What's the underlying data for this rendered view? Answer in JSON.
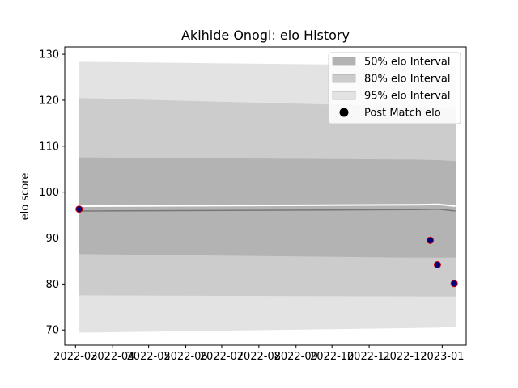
{
  "chart_data": {
    "type": "area",
    "title": "Akihide Onogi: elo History",
    "xlabel": "",
    "ylabel": "elo score",
    "x_ticks": [
      "2022-03",
      "2022-04",
      "2022-05",
      "2022-06",
      "2022-07",
      "2022-08",
      "2022-09",
      "2022-10",
      "2022-11",
      "2022-12",
      "2023-01"
    ],
    "x_tick_dates": [
      "2022-03-01",
      "2022-04-01",
      "2022-05-01",
      "2022-06-01",
      "2022-07-01",
      "2022-08-01",
      "2022-09-01",
      "2022-10-01",
      "2022-11-01",
      "2022-12-01",
      "2023-01-01"
    ],
    "y_ticks": [
      70,
      80,
      90,
      100,
      110,
      120,
      130
    ],
    "ylim": [
      66.7,
      131.6
    ],
    "xlim": [
      "2022-02-20",
      "2023-01-21"
    ],
    "grid": false,
    "legend_position": "top-right",
    "legend": [
      {
        "label": "50% elo Interval",
        "color": "#b3b3b3"
      },
      {
        "label": "80% elo Interval",
        "color": "#cccccc"
      },
      {
        "label": "95% elo Interval",
        "color": "#e3e3e3"
      },
      {
        "label": "Post Match elo",
        "color": "#000000"
      }
    ],
    "bands": {
      "x": [
        "2022-03-04",
        "2022-12-11",
        "2022-12-29",
        "2023-01-12"
      ],
      "mean": [
        95.9,
        96.2,
        96.3,
        95.9
      ],
      "p50_low": [
        86.6,
        85.8,
        85.8,
        85.8
      ],
      "p50_high": [
        107.5,
        107.0,
        106.9,
        106.7
      ],
      "p80_low": [
        77.6,
        77.4,
        77.4,
        77.4
      ],
      "p80_high": [
        120.4,
        118.5,
        118.3,
        118.0
      ],
      "p95_low": [
        69.5,
        70.5,
        70.6,
        70.8
      ],
      "p95_high": [
        128.3,
        127.5,
        127.4,
        127.3
      ]
    },
    "points": [
      {
        "x": "2022-03-04",
        "y": 96.3
      },
      {
        "x": "2022-12-22",
        "y": 89.5
      },
      {
        "x": "2022-12-28",
        "y": 84.2
      },
      {
        "x": "2023-01-11",
        "y": 80.1
      }
    ],
    "colors": {
      "p50": "#b3b3b3",
      "p80": "#cccccc",
      "p95": "#e3e3e3",
      "mean_line": "#777777",
      "point_fill": "#000080",
      "point_edge": "#cc0000"
    }
  }
}
